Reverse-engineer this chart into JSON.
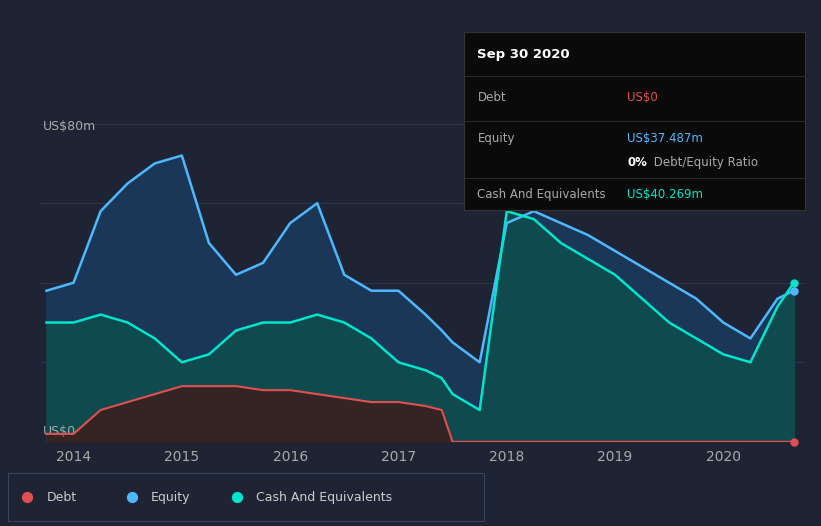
{
  "bg_color": "#1e2433",
  "equity_color": "#4db8ff",
  "equity_fill": "#1a3a5c",
  "cash_color": "#00e5cc",
  "cash_fill": "#0d4d4d",
  "debt_color": "#e05050",
  "debt_fill": "#3a2020",
  "grid_color": "#3a4460",
  "annotation_bg": "#0a0a0a",
  "annotation_border": "#333333",
  "debt_label_color": "#e05050",
  "equity_label_color": "#4db8ff",
  "cash_label_color": "#00e5cc",
  "legend_border": "#3a4460",
  "x_ticks": [
    "2014",
    "2015",
    "2016",
    "2017",
    "2018",
    "2019",
    "2020"
  ],
  "y_label_top": "US$80m",
  "y_label_bottom": "US$0",
  "title": "Sep 30 2020",
  "ann_debt_label": "Debt",
  "ann_debt_value": "US$0",
  "ann_equity_label": "Equity",
  "ann_equity_value": "US$37.487m",
  "ann_ratio_bold": "0%",
  "ann_ratio_text": " Debt/Equity Ratio",
  "ann_cash_label": "Cash And Equivalents",
  "ann_cash_value": "US$40.269m",
  "leg_debt": "Debt",
  "leg_equity": "Equity",
  "leg_cash": "Cash And Equivalents",
  "time": [
    2013.75,
    2014.0,
    2014.25,
    2014.5,
    2014.75,
    2015.0,
    2015.25,
    2015.5,
    2015.75,
    2016.0,
    2016.25,
    2016.5,
    2016.75,
    2017.0,
    2017.25,
    2017.4,
    2017.5,
    2017.75,
    2018.0,
    2018.25,
    2018.5,
    2018.75,
    2019.0,
    2019.25,
    2019.5,
    2019.75,
    2020.0,
    2020.25,
    2020.5,
    2020.65
  ],
  "equity": [
    38,
    40,
    58,
    65,
    70,
    72,
    50,
    42,
    45,
    55,
    60,
    42,
    38,
    38,
    32,
    28,
    25,
    20,
    55,
    58,
    55,
    52,
    48,
    44,
    40,
    36,
    30,
    26,
    36,
    38
  ],
  "cash": [
    30,
    30,
    32,
    30,
    26,
    20,
    22,
    28,
    30,
    30,
    32,
    30,
    26,
    20,
    18,
    16,
    12,
    8,
    58,
    56,
    50,
    46,
    42,
    36,
    30,
    26,
    22,
    20,
    34,
    40
  ],
  "debt": [
    2,
    2,
    8,
    10,
    12,
    14,
    14,
    14,
    13,
    13,
    12,
    11,
    10,
    10,
    9,
    8,
    0,
    0,
    0,
    0,
    0,
    0,
    0,
    0,
    0,
    0,
    0,
    0,
    0,
    0
  ]
}
